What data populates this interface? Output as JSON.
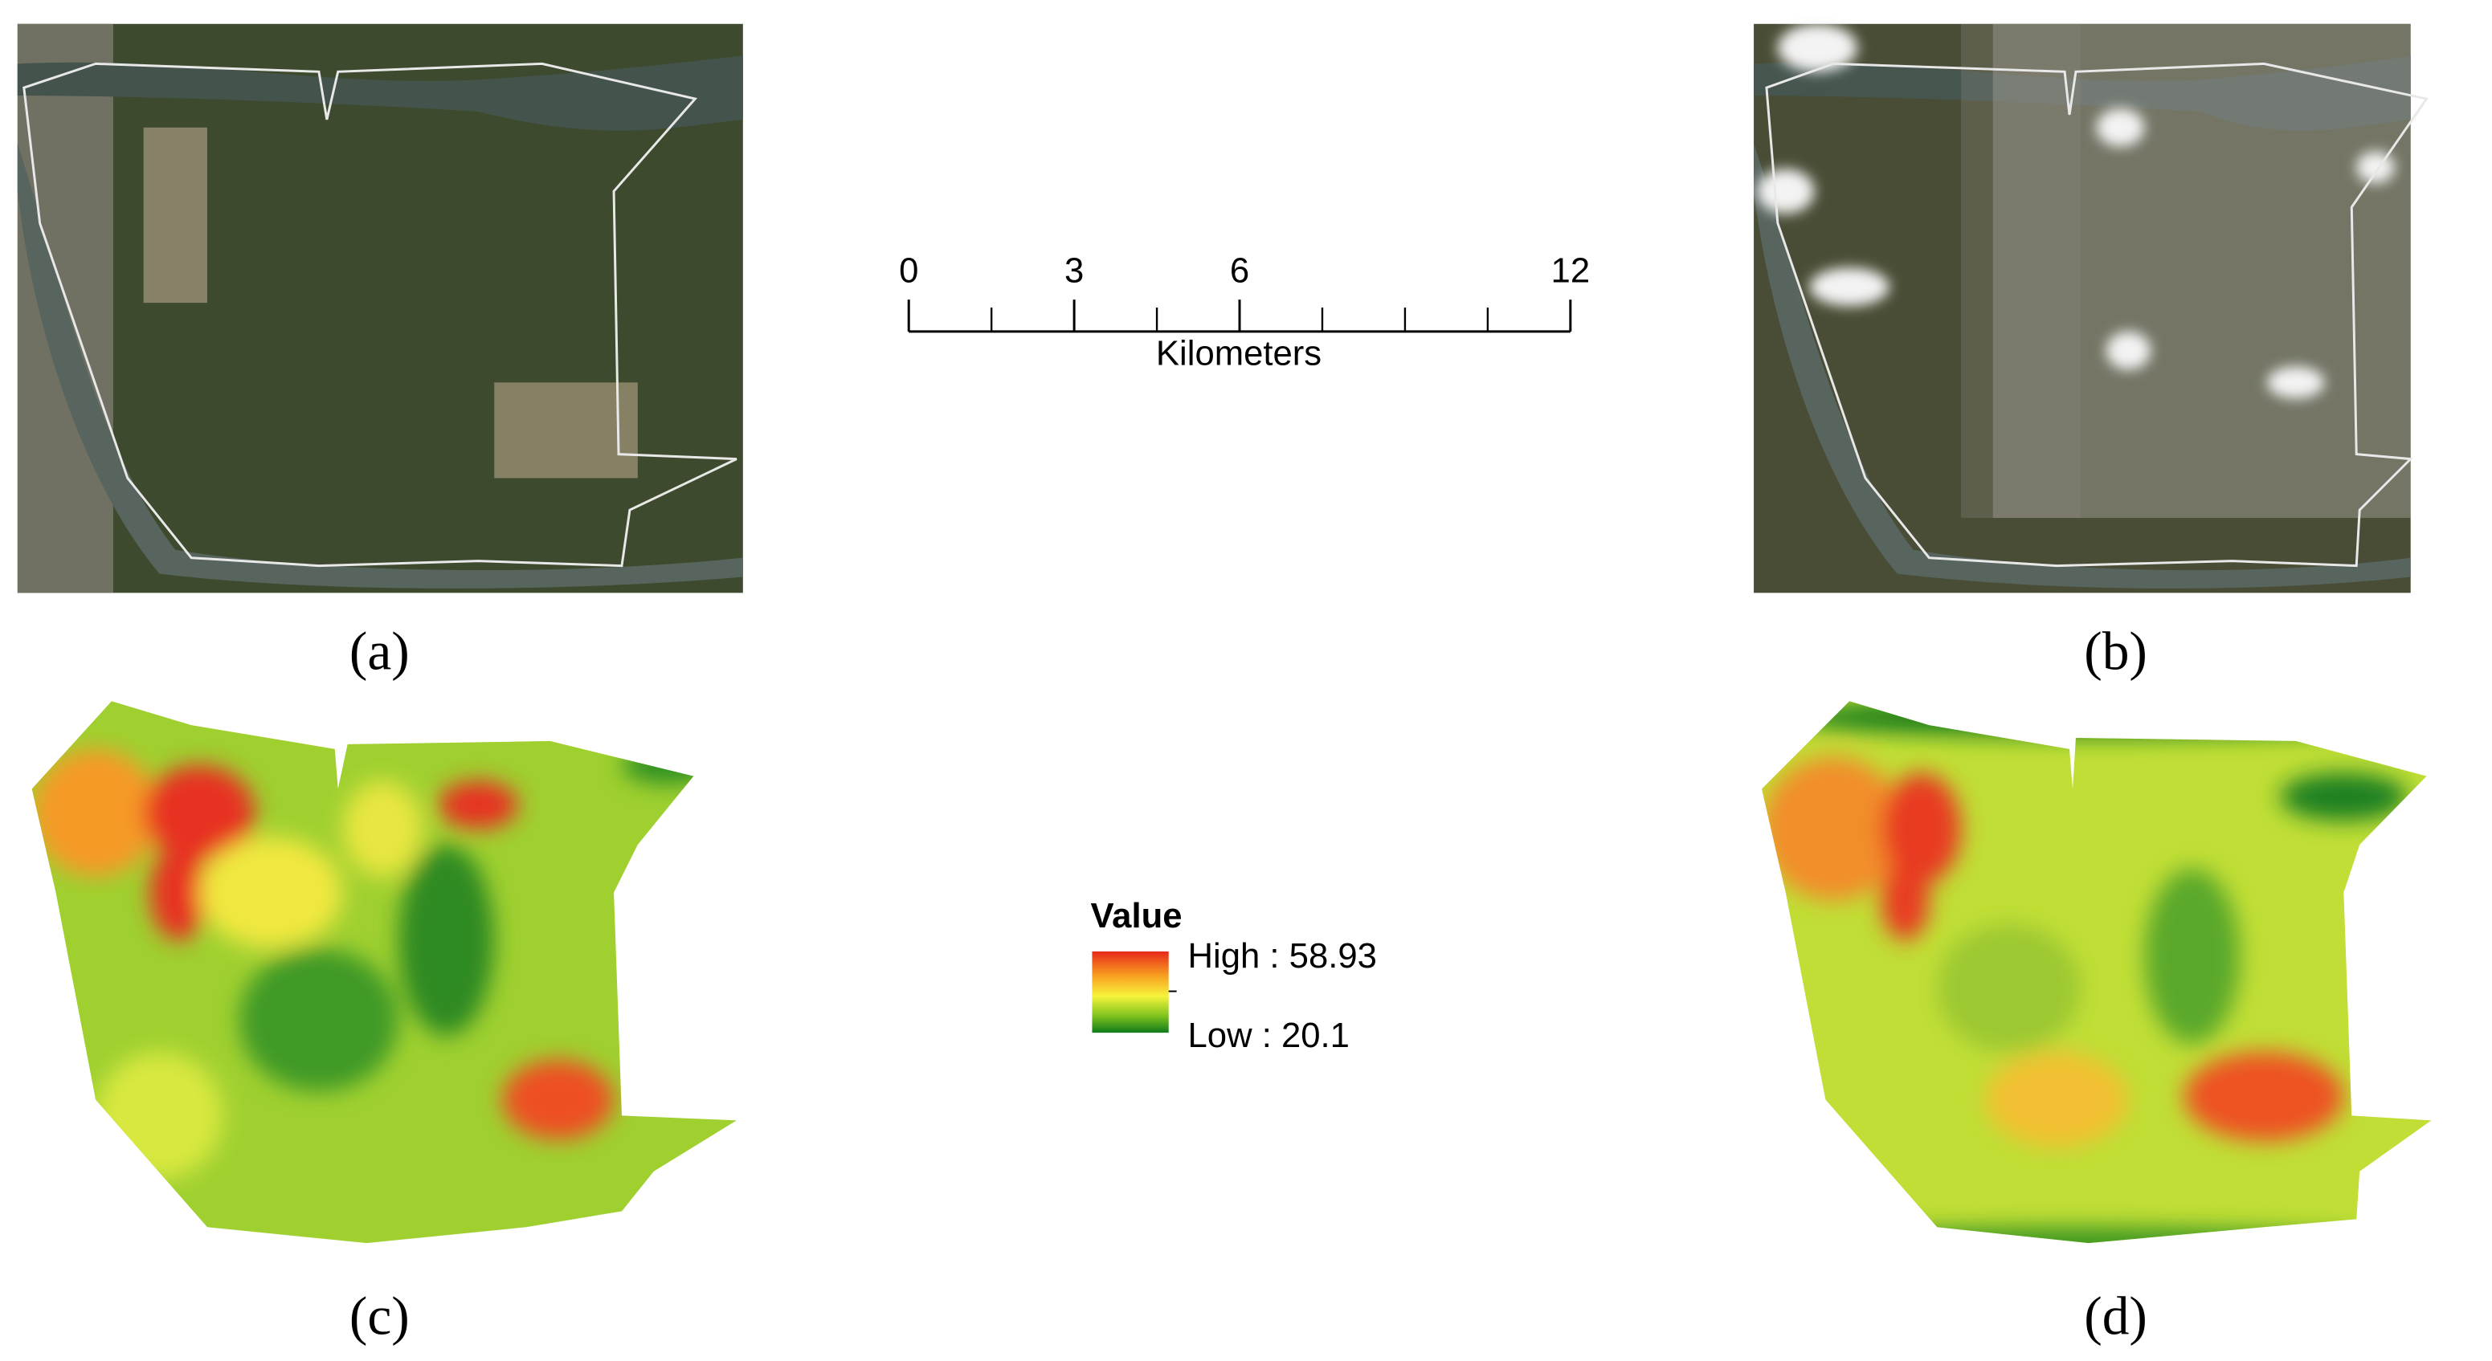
{
  "panels": [
    {
      "label": "(a)"
    },
    {
      "label": "(b)"
    },
    {
      "label": "(c)"
    },
    {
      "label": "(d)"
    }
  ],
  "scale_bar": {
    "ticks": [
      0,
      3,
      6,
      12
    ],
    "unit": "Kilometers"
  },
  "legend": {
    "title": "Value",
    "high": "High : 58.93",
    "low": "Low : 20.1"
  }
}
